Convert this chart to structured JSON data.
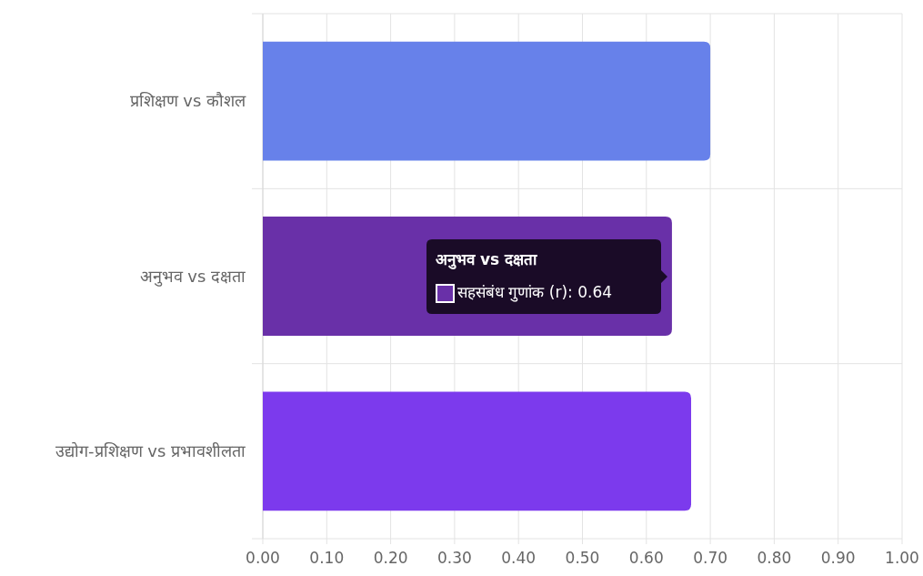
{
  "chart_data": {
    "type": "bar",
    "orientation": "horizontal",
    "categories": [
      "प्रशिक्षण vs कौशल",
      "अनुभव vs दक्षता",
      "उद्योग-प्रशिक्षण vs प्रभावशीलता"
    ],
    "series": [
      {
        "colors": [
          "#6781ea",
          "#6930a8",
          "#7c3aed"
        ],
        "values": [
          0.7,
          0.64,
          0.67
        ]
      }
    ],
    "xlim": [
      0,
      1
    ],
    "xticks": [
      {
        "value": 0,
        "label": "0.00"
      },
      {
        "value": 0.1,
        "label": "0.10"
      },
      {
        "value": 0.2,
        "label": "0.20"
      },
      {
        "value": 0.3,
        "label": "0.30"
      },
      {
        "value": 0.4,
        "label": "0.40"
      },
      {
        "value": 0.5,
        "label": "0.50"
      },
      {
        "value": 0.6,
        "label": "0.60"
      },
      {
        "value": 0.7,
        "label": "0.70"
      },
      {
        "value": 0.8,
        "label": "0.80"
      },
      {
        "value": 0.9,
        "label": "0.90"
      },
      {
        "value": 1,
        "label": "1.00"
      }
    ],
    "grid": true,
    "annotations": [
      "अनुभव vs दक्षता",
      "सहसंबंध गुणांक (r): 0.64"
    ]
  }
}
